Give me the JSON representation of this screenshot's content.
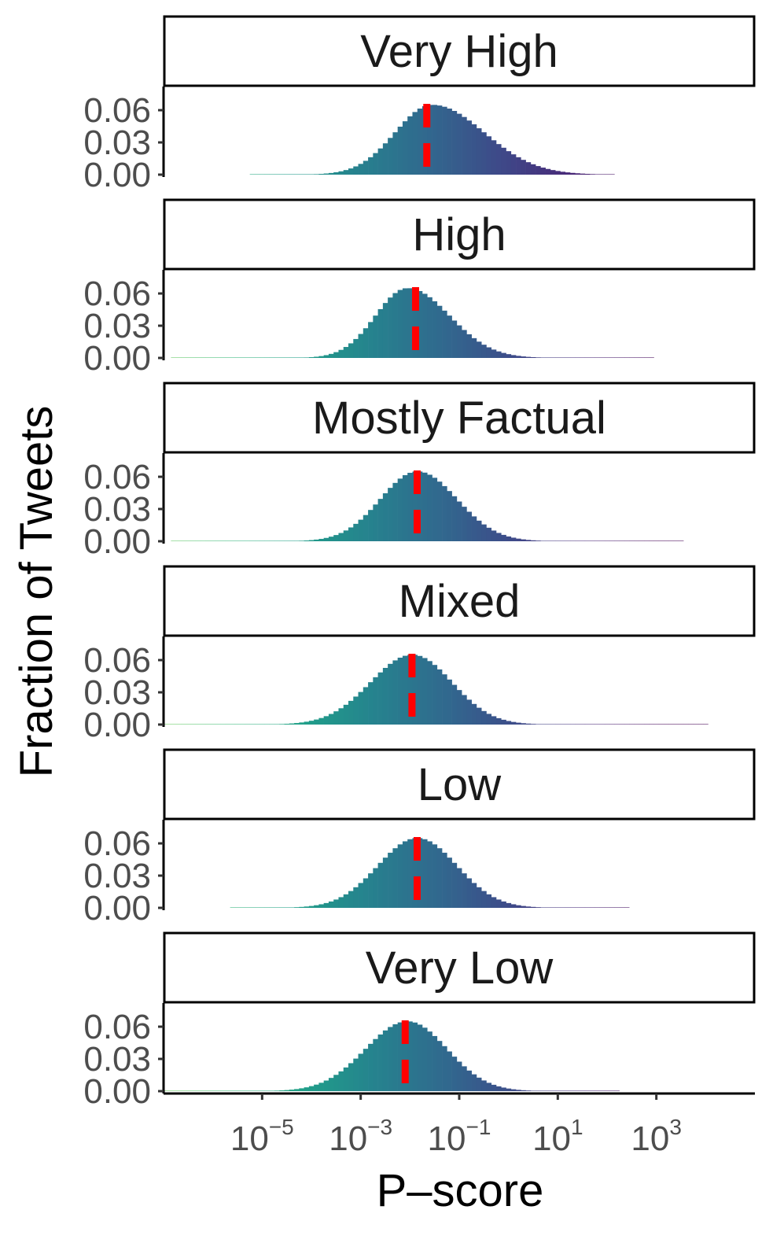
{
  "chart_data": {
    "type": "bar",
    "title": "",
    "xlabel": "P–score",
    "ylabel": "Fraction of Tweets",
    "x_scale": "log10",
    "x_ticks": [
      {
        "value": 1e-05,
        "base": "10",
        "exp": "−5"
      },
      {
        "value": 0.001,
        "base": "10",
        "exp": "−3"
      },
      {
        "value": 0.1,
        "base": "10",
        "exp": "−1"
      },
      {
        "value": 10,
        "base": "10",
        "exp": "1"
      },
      {
        "value": 1000,
        "base": "10",
        "exp": "3"
      }
    ],
    "xlim": [
      1e-07,
      100000.0
    ],
    "y_ticks": [
      0.0,
      0.03,
      0.06
    ],
    "y_tick_labels": [
      "0.00",
      "0.03",
      "0.06"
    ],
    "ylim": [
      0,
      0.082
    ],
    "grid": false,
    "legend": "none",
    "median_line_color": "#ff0000",
    "facets": [
      {
        "label": "Very High",
        "median": 0.022,
        "peak": 0.018,
        "mu": -1.55,
        "sl": 0.75,
        "sr": 1.05,
        "tail_lo": -5.2,
        "tail_hi": 2.15,
        "hue_offset": 0.0
      },
      {
        "label": "High",
        "median": 0.013,
        "peak": 0.009,
        "mu": -2.05,
        "sl": 0.65,
        "sr": 0.85,
        "tail_lo": -6.8,
        "tail_hi": 2.9,
        "hue_offset": 0.15
      },
      {
        "label": "Mostly Factual",
        "median": 0.014,
        "peak": 0.015,
        "mu": -1.85,
        "sl": 0.75,
        "sr": 0.8,
        "tail_lo": -6.8,
        "tail_hi": 3.5,
        "hue_offset": 0.12
      },
      {
        "label": "Mixed",
        "median": 0.011,
        "peak": 0.011,
        "mu": -1.95,
        "sl": 0.85,
        "sr": 0.8,
        "tail_lo": -7.0,
        "tail_hi": 4.0,
        "hue_offset": 0.18
      },
      {
        "label": "Low",
        "median": 0.014,
        "peak": 0.015,
        "mu": -1.85,
        "sl": 0.8,
        "sr": 0.8,
        "tail_lo": -5.6,
        "tail_hi": 2.4,
        "hue_offset": 0.1
      },
      {
        "label": "Very Low",
        "median": 0.008,
        "peak": 0.05,
        "mu": -2.05,
        "sl": 0.85,
        "sr": 0.8,
        "tail_lo": -7.0,
        "tail_hi": 2.2,
        "hue_offset": 0.18
      }
    ]
  }
}
